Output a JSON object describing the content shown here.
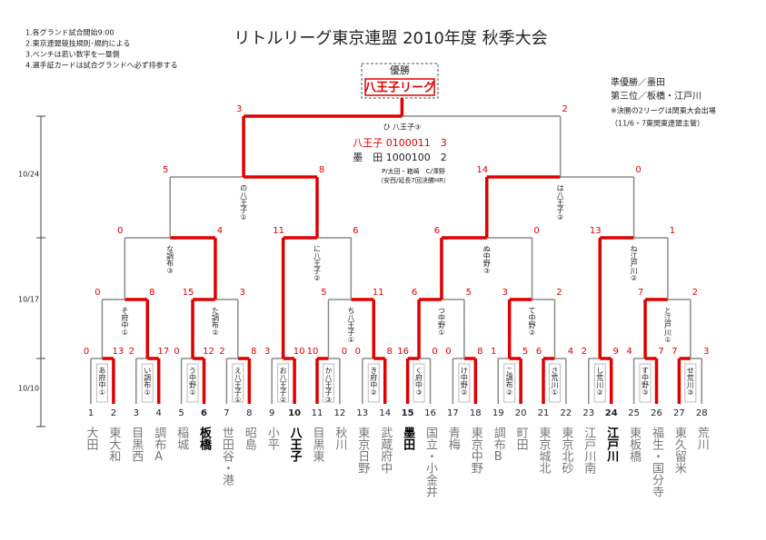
{
  "title": "リトルリーグ東京連盟 2010年度 秋季大会",
  "notes": [
    "1.各グランド試合開始9:00",
    "2.東京連盟競技規則･規約による",
    "3.ベンチは若い数字を一塁側",
    "4.選手証カードは試合グランドへ必ず持参する"
  ],
  "champion": {
    "label": "優勝",
    "name": "八王子リーグ"
  },
  "results": [
    "準優勝／墨田",
    "第三位／板橋・江戸川",
    "※決勝の2リーグは関東大会出場",
    "（11/6・7東関東連盟主管）"
  ],
  "final_score": [
    "八王子 0100011　3",
    "墨　田 1000100　2",
    "P/太田・箱崎　C/澤野",
    "（安西/延長7回決勝HR）"
  ],
  "dates": [
    "10/24",
    "10/17",
    "10/10"
  ],
  "teams": [
    {
      "no": 1,
      "name": "大田"
    },
    {
      "no": 2,
      "name": "東大和"
    },
    {
      "no": 3,
      "name": "目黒西"
    },
    {
      "no": 4,
      "name": "調布A"
    },
    {
      "no": 5,
      "name": "稲城"
    },
    {
      "no": 6,
      "name": "板橋",
      "highlight": true
    },
    {
      "no": 7,
      "name": "世田谷・港"
    },
    {
      "no": 8,
      "name": "昭島"
    },
    {
      "no": 9,
      "name": "小平"
    },
    {
      "no": 10,
      "name": "八王子",
      "highlight": true
    },
    {
      "no": 11,
      "name": "目黒東"
    },
    {
      "no": 12,
      "name": "秋川"
    },
    {
      "no": 13,
      "name": "東京日野"
    },
    {
      "no": 14,
      "name": "武蔵府中"
    },
    {
      "no": 15,
      "name": "墨田",
      "highlight": true
    },
    {
      "no": 16,
      "name": "国立・小金井"
    },
    {
      "no": 17,
      "name": "青梅"
    },
    {
      "no": 18,
      "name": "東京中野"
    },
    {
      "no": 19,
      "name": "調布B"
    },
    {
      "no": 20,
      "name": "町田"
    },
    {
      "no": 21,
      "name": "東京城北"
    },
    {
      "no": 22,
      "name": "東京北砂"
    },
    {
      "no": 23,
      "name": "江戸川南"
    },
    {
      "no": 24,
      "name": "江戸川",
      "highlight": true
    },
    {
      "no": 25,
      "name": "東板橋"
    },
    {
      "no": 26,
      "name": "福生・国分寺"
    },
    {
      "no": 27,
      "name": "東久留米"
    },
    {
      "no": 28,
      "name": "荒川"
    }
  ],
  "matches": [
    {
      "label": "あ府中①",
      "scores": [
        0,
        13
      ]
    },
    {
      "label": "い調布①",
      "scores": [
        2,
        17
      ]
    },
    {
      "label": "う中野①",
      "scores": [
        0,
        12
      ]
    },
    {
      "label": "え八王子①",
      "scores": [
        2,
        8
      ]
    },
    {
      "label": "お八王子②",
      "scores": [
        3,
        10
      ]
    },
    {
      "label": "か八王子③",
      "scores": [
        10,
        0
      ]
    },
    {
      "label": "き府中②",
      "scores": [
        0,
        8
      ]
    },
    {
      "label": "く府中③",
      "scores": [
        16,
        0
      ]
    },
    {
      "label": "け中野②",
      "scores": [
        0,
        8
      ]
    },
    {
      "label": "こ調布②",
      "scores": [
        1,
        5
      ]
    },
    {
      "label": "さ荒川①",
      "scores": [
        6,
        4
      ]
    },
    {
      "label": "し荒川②",
      "scores": [
        2,
        9
      ]
    },
    {
      "label": "す中野③",
      "scores": [
        4,
        7
      ]
    },
    {
      "label": "せ荒川③",
      "scores": [
        7,
        3
      ]
    },
    {
      "label": "そ府中①",
      "scores": [
        0,
        8
      ]
    },
    {
      "label": "た調布②",
      "scores": [
        15,
        3
      ]
    },
    {
      "label": "ち八王子①",
      "scores": [
        5,
        11
      ]
    },
    {
      "label": "つ中野①",
      "scores": [
        6,
        5
      ]
    },
    {
      "label": "て中野②",
      "scores": [
        3,
        2
      ]
    },
    {
      "label": "と江戸川①",
      "scores": [
        7,
        2
      ]
    },
    {
      "label": "な調布③",
      "scores": [
        0,
        4
      ]
    },
    {
      "label": "に八王子②",
      "scores": [
        11,
        6
      ]
    },
    {
      "label": "ぬ中野③",
      "scores": [
        6,
        0
      ]
    },
    {
      "label": "ね江戸川②",
      "scores": [
        13,
        1
      ]
    },
    {
      "label": "の八王子①",
      "scores": [
        5,
        8
      ]
    },
    {
      "label": "は八王子②",
      "scores": [
        14,
        0
      ]
    },
    {
      "label": "ひ 八王子③",
      "scores": [
        3,
        2
      ]
    }
  ]
}
